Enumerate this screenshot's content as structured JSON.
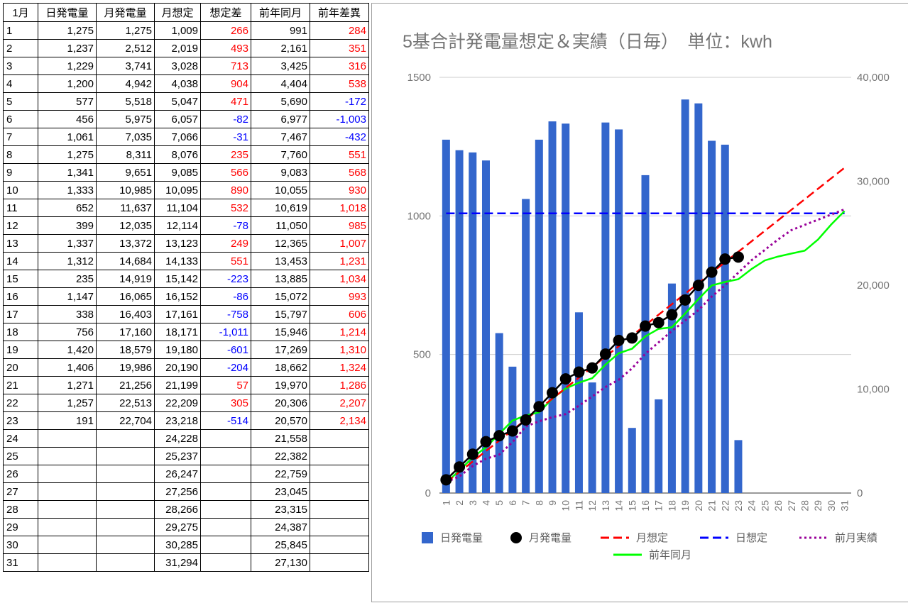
{
  "table": {
    "headers": [
      "1月",
      "日発電量",
      "月発電量",
      "月想定",
      "想定差",
      "前年同月",
      "前年差異"
    ],
    "rows": [
      [
        "1",
        "1,275",
        "1,275",
        "1,009",
        "266",
        "991",
        "284"
      ],
      [
        "2",
        "1,237",
        "2,512",
        "2,019",
        "493",
        "2,161",
        "351"
      ],
      [
        "3",
        "1,229",
        "3,741",
        "3,028",
        "713",
        "3,425",
        "316"
      ],
      [
        "4",
        "1,200",
        "4,942",
        "4,038",
        "904",
        "4,404",
        "538"
      ],
      [
        "5",
        "577",
        "5,518",
        "5,047",
        "471",
        "5,690",
        "-172"
      ],
      [
        "6",
        "456",
        "5,975",
        "6,057",
        "-82",
        "6,977",
        "-1,003"
      ],
      [
        "7",
        "1,061",
        "7,035",
        "7,066",
        "-31",
        "7,467",
        "-432"
      ],
      [
        "8",
        "1,275",
        "8,311",
        "8,076",
        "235",
        "7,760",
        "551"
      ],
      [
        "9",
        "1,341",
        "9,651",
        "9,085",
        "566",
        "9,083",
        "568"
      ],
      [
        "10",
        "1,333",
        "10,985",
        "10,095",
        "890",
        "10,055",
        "930"
      ],
      [
        "11",
        "652",
        "11,637",
        "11,104",
        "532",
        "10,619",
        "1,018"
      ],
      [
        "12",
        "399",
        "12,035",
        "12,114",
        "-78",
        "11,050",
        "985"
      ],
      [
        "13",
        "1,337",
        "13,372",
        "13,123",
        "249",
        "12,365",
        "1,007"
      ],
      [
        "14",
        "1,312",
        "14,684",
        "14,133",
        "551",
        "13,453",
        "1,231"
      ],
      [
        "15",
        "235",
        "14,919",
        "15,142",
        "-223",
        "13,885",
        "1,034"
      ],
      [
        "16",
        "1,147",
        "16,065",
        "16,152",
        "-86",
        "15,072",
        "993"
      ],
      [
        "17",
        "338",
        "16,403",
        "17,161",
        "-758",
        "15,797",
        "606"
      ],
      [
        "18",
        "756",
        "17,160",
        "18,171",
        "-1,011",
        "15,946",
        "1,214"
      ],
      [
        "19",
        "1,420",
        "18,579",
        "19,180",
        "-601",
        "17,269",
        "1,310"
      ],
      [
        "20",
        "1,406",
        "19,986",
        "20,190",
        "-204",
        "18,662",
        "1,324"
      ],
      [
        "21",
        "1,271",
        "21,256",
        "21,199",
        "57",
        "19,970",
        "1,286"
      ],
      [
        "22",
        "1,257",
        "22,513",
        "22,209",
        "305",
        "20,306",
        "2,207"
      ],
      [
        "23",
        "191",
        "22,704",
        "23,218",
        "-514",
        "20,570",
        "2,134"
      ],
      [
        "24",
        "",
        "",
        "24,228",
        "",
        "21,558",
        ""
      ],
      [
        "25",
        "",
        "",
        "25,237",
        "",
        "22,382",
        ""
      ],
      [
        "26",
        "",
        "",
        "26,247",
        "",
        "22,759",
        ""
      ],
      [
        "27",
        "",
        "",
        "27,256",
        "",
        "23,045",
        ""
      ],
      [
        "28",
        "",
        "",
        "28,266",
        "",
        "23,315",
        ""
      ],
      [
        "29",
        "",
        "",
        "29,275",
        "",
        "24,387",
        ""
      ],
      [
        "30",
        "",
        "",
        "30,285",
        "",
        "25,845",
        ""
      ],
      [
        "31",
        "",
        "",
        "31,294",
        "",
        "27,130",
        ""
      ]
    ]
  },
  "colors": {
    "positive": "#ff0000",
    "negative": "#0000ff",
    "bar": "#3366cc",
    "monthly_actual": "#000000",
    "monthly_forecast": "#ff0000",
    "daily_forecast": "#0000ff",
    "prev_month": "#990099",
    "prev_year": "#00ff00",
    "grid": "#cccccc",
    "axis_text": "#757575"
  },
  "chart_data": {
    "type": "bar",
    "title": "5基合計発電量想定＆実績（日毎）　単位：kwh",
    "categories": [
      "1",
      "2",
      "3",
      "4",
      "5",
      "6",
      "7",
      "8",
      "9",
      "10",
      "11",
      "12",
      "13",
      "14",
      "15",
      "16",
      "17",
      "18",
      "19",
      "20",
      "21",
      "22",
      "23",
      "24",
      "25",
      "26",
      "27",
      "28",
      "29",
      "30",
      "31"
    ],
    "left_axis": {
      "range": [
        0,
        1500
      ],
      "ticks": [
        "0",
        "500",
        "1000",
        "1500"
      ]
    },
    "right_axis": {
      "range": [
        0,
        40000
      ],
      "ticks": [
        "0",
        "10,000",
        "20,000",
        "30,000",
        "40,000"
      ]
    },
    "grid": true,
    "legend_position": "bottom",
    "series": [
      {
        "name": "日発電量",
        "type": "bar",
        "axis": "left",
        "values": [
          1275,
          1237,
          1229,
          1200,
          577,
          456,
          1061,
          1275,
          1341,
          1333,
          652,
          399,
          1337,
          1312,
          235,
          1147,
          338,
          756,
          1420,
          1406,
          1271,
          1257,
          191,
          null,
          null,
          null,
          null,
          null,
          null,
          null,
          null
        ]
      },
      {
        "name": "月発電量",
        "type": "line-markers",
        "axis": "right",
        "values": [
          1275,
          2512,
          3741,
          4942,
          5518,
          5975,
          7035,
          8311,
          9651,
          10985,
          11637,
          12035,
          13372,
          14684,
          14919,
          16065,
          16403,
          17160,
          18579,
          19986,
          21256,
          22513,
          22704,
          null,
          null,
          null,
          null,
          null,
          null,
          null,
          null
        ]
      },
      {
        "name": "月想定",
        "type": "dashed-line",
        "axis": "right",
        "values": [
          1009,
          2019,
          3028,
          4038,
          5047,
          6057,
          7066,
          8076,
          9085,
          10095,
          11104,
          12114,
          13123,
          14133,
          15142,
          16152,
          17161,
          18171,
          19180,
          20190,
          21199,
          22209,
          23218,
          24228,
          25237,
          26247,
          27256,
          28266,
          29275,
          30285,
          31294
        ]
      },
      {
        "name": "日想定",
        "type": "dashed-line",
        "axis": "left",
        "values": [
          1009,
          1009,
          1009,
          1009,
          1009,
          1009,
          1009,
          1009,
          1009,
          1009,
          1009,
          1009,
          1009,
          1009,
          1009,
          1009,
          1009,
          1009,
          1009,
          1009,
          1009,
          1009,
          1009,
          1009,
          1009,
          1009,
          1009,
          1009,
          1009,
          1009,
          1009
        ]
      },
      {
        "name": "前月実績",
        "type": "dotted-line",
        "axis": "right",
        "values": [
          1050,
          1600,
          2600,
          3300,
          3700,
          4900,
          6400,
          6900,
          7300,
          7600,
          8400,
          9300,
          10200,
          10900,
          12000,
          13400,
          14500,
          15600,
          16600,
          17600,
          18900,
          20000,
          21200,
          22400,
          23400,
          24400,
          25300,
          25800,
          26300,
          26800,
          27300
        ]
      },
      {
        "name": "前年同月",
        "type": "line",
        "axis": "right",
        "values": [
          991,
          2161,
          3425,
          4404,
          5690,
          6977,
          7467,
          7760,
          9083,
          10055,
          10619,
          11050,
          12365,
          13453,
          13885,
          15072,
          15797,
          15946,
          17269,
          18662,
          19970,
          20306,
          20570,
          21558,
          22382,
          22759,
          23045,
          23315,
          24387,
          25845,
          27130
        ]
      }
    ]
  }
}
